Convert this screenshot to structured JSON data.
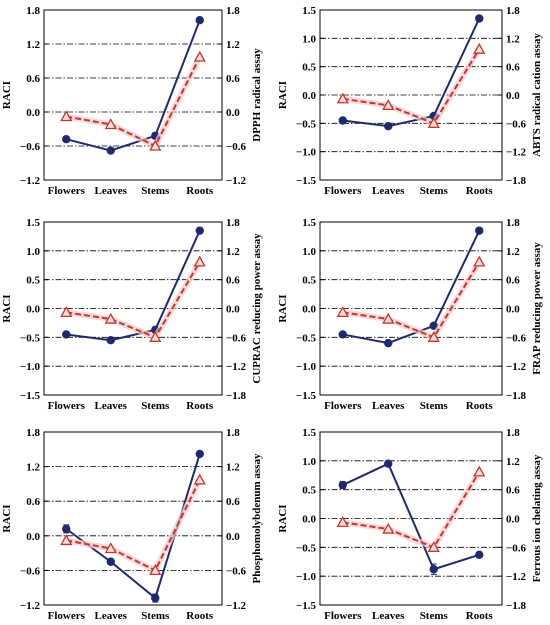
{
  "chart_data": [
    {
      "type": "line",
      "categories": [
        "Flowers",
        "Leaves",
        "Stems",
        "Roots"
      ],
      "ylabel": "RACI",
      "y2label": "DPPH radical assay",
      "ylim": [
        -1.2,
        1.8
      ],
      "yticks": [
        "−1.2",
        "−0.6",
        "0.0",
        "0.6",
        "1.2",
        "1.8"
      ],
      "y2lim": [
        -1.2,
        1.8
      ],
      "y2ticks": [
        "−1.2",
        "−0.6",
        "0.0",
        "0.6",
        "1.2",
        "1.8"
      ],
      "series": [
        {
          "values": [
            -0.48,
            -0.68,
            -0.42,
            1.62
          ],
          "errors": [
            0.04,
            0.03,
            0.05,
            0.03
          ],
          "color": "#1f2a6b",
          "style": "solid",
          "marker": "circle",
          "axis": "left"
        },
        {
          "values": [
            -0.08,
            -0.22,
            -0.6,
            0.97
          ],
          "color": "#c0392b",
          "style": "dashed",
          "marker": "triangle",
          "axis": "left"
        }
      ],
      "grid": "horizontal dash-dot"
    },
    {
      "type": "line",
      "categories": [
        "Flowers",
        "Leaves",
        "Stems",
        "Roots"
      ],
      "ylabel": "RACI",
      "y2label": "ABTS radical cation assay",
      "ylim": [
        -1.5,
        1.5
      ],
      "yticks": [
        "−1.5",
        "−1.0",
        "−0.5",
        "0.0",
        "0.5",
        "1.0",
        "1.5"
      ],
      "y2lim": [
        -1.8,
        1.8
      ],
      "y2ticks": [
        "−1.8",
        "−1.2",
        "−0.6",
        "0.0",
        "0.6",
        "1.2",
        "1.8"
      ],
      "series": [
        {
          "values": [
            -0.45,
            -0.55,
            -0.37,
            1.35
          ],
          "errors": [
            0.04,
            0.03,
            0.03,
            0.03
          ],
          "color": "#1f2a6b",
          "style": "solid",
          "marker": "circle",
          "axis": "left"
        },
        {
          "values": [
            -0.08,
            -0.22,
            -0.6,
            0.97
          ],
          "color": "#c0392b",
          "style": "dashed",
          "marker": "triangle",
          "axis": "right"
        }
      ],
      "grid": "horizontal dash-dot"
    },
    {
      "type": "line",
      "categories": [
        "Flowers",
        "Leaves",
        "Stems",
        "Roots"
      ],
      "ylabel": "RACI",
      "y2label": "CUPRAC reducing power assay",
      "ylim": [
        -1.5,
        1.5
      ],
      "yticks": [
        "−1.5",
        "−1.0",
        "−0.5",
        "0.0",
        "0.5",
        "1.0",
        "1.5"
      ],
      "y2lim": [
        -1.8,
        1.8
      ],
      "y2ticks": [
        "−1.8",
        "−1.2",
        "−0.6",
        "0.0",
        "0.6",
        "1.2",
        "1.8"
      ],
      "series": [
        {
          "values": [
            -0.45,
            -0.55,
            -0.37,
            1.35
          ],
          "errors": [
            0.03,
            0.03,
            0.03,
            0.03
          ],
          "color": "#1f2a6b",
          "style": "solid",
          "marker": "circle",
          "axis": "left"
        },
        {
          "values": [
            -0.08,
            -0.22,
            -0.6,
            0.97
          ],
          "color": "#c0392b",
          "style": "dashed",
          "marker": "triangle",
          "axis": "right"
        }
      ],
      "grid": "horizontal dash-dot"
    },
    {
      "type": "line",
      "categories": [
        "Flowers",
        "Leaves",
        "Stems",
        "Roots"
      ],
      "ylabel": "RACI",
      "y2label": "FRAP reducing power assay",
      "ylim": [
        -1.5,
        1.5
      ],
      "yticks": [
        "−1.5",
        "−1.0",
        "−0.5",
        "0.0",
        "0.5",
        "1.0",
        "1.5"
      ],
      "y2lim": [
        -1.8,
        1.8
      ],
      "y2ticks": [
        "−1.8",
        "−1.2",
        "−0.6",
        "0.0",
        "0.6",
        "1.2",
        "1.8"
      ],
      "series": [
        {
          "values": [
            -0.45,
            -0.6,
            -0.3,
            1.35
          ],
          "errors": [
            0.03,
            0.03,
            0.03,
            0.03
          ],
          "color": "#1f2a6b",
          "style": "solid",
          "marker": "circle",
          "axis": "left"
        },
        {
          "values": [
            -0.08,
            -0.22,
            -0.6,
            0.97
          ],
          "color": "#c0392b",
          "style": "dashed",
          "marker": "triangle",
          "axis": "right"
        }
      ],
      "grid": "horizontal dash-dot"
    },
    {
      "type": "line",
      "categories": [
        "Flowers",
        "Leaves",
        "Stems",
        "Roots"
      ],
      "ylabel": "RACI",
      "y2label": "Phosphomolybdenum assay",
      "ylim": [
        -1.2,
        1.8
      ],
      "yticks": [
        "−1.2",
        "−0.6",
        "0.0",
        "0.6",
        "1.2",
        "1.8"
      ],
      "y2lim": [
        -1.2,
        1.8
      ],
      "y2ticks": [
        "−1.2",
        "−0.6",
        "0.0",
        "0.6",
        "1.2",
        "1.8"
      ],
      "series": [
        {
          "values": [
            0.12,
            -0.45,
            -1.08,
            1.42
          ],
          "errors": [
            0.07,
            0.03,
            0.07,
            0.03
          ],
          "color": "#1f2a6b",
          "style": "solid",
          "marker": "circle",
          "axis": "left"
        },
        {
          "values": [
            -0.08,
            -0.22,
            -0.6,
            0.97
          ],
          "color": "#c0392b",
          "style": "dashed",
          "marker": "triangle",
          "axis": "left"
        }
      ],
      "grid": "horizontal dash-dot"
    },
    {
      "type": "line",
      "categories": [
        "Flowers",
        "Leaves",
        "Stems",
        "Roots"
      ],
      "ylabel": "RACI",
      "y2label": "Ferrous ion chelating assay",
      "ylim": [
        -1.5,
        1.5
      ],
      "yticks": [
        "−1.5",
        "−1.0",
        "−0.5",
        "0.0",
        "0.5",
        "1.0",
        "1.5"
      ],
      "y2lim": [
        -1.8,
        1.8
      ],
      "y2ticks": [
        "−1.8",
        "−1.2",
        "−0.6",
        "0.0",
        "0.6",
        "1.2",
        "1.8"
      ],
      "series": [
        {
          "values": [
            0.58,
            0.95,
            -0.88,
            -0.63
          ],
          "errors": [
            0.06,
            0.04,
            0.09,
            0.03
          ],
          "color": "#1f2a6b",
          "style": "solid",
          "marker": "circle",
          "axis": "left"
        },
        {
          "values": [
            -0.08,
            -0.22,
            -0.6,
            0.97
          ],
          "color": "#c0392b",
          "style": "dashed",
          "marker": "triangle",
          "axis": "right"
        }
      ],
      "grid": "horizontal dash-dot"
    }
  ]
}
